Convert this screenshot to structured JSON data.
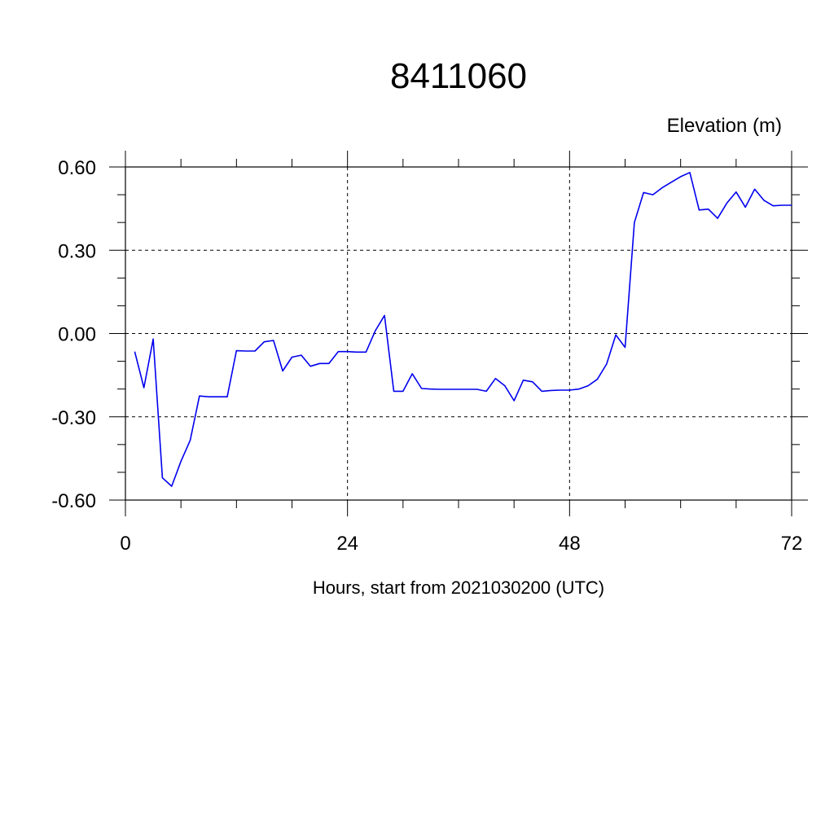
{
  "chart_data": {
    "type": "line",
    "title": "8411060",
    "ylabel": "Elevation (m)",
    "xlabel": "Hours, start from 2021030200 (UTC)",
    "xlim": [
      0,
      72
    ],
    "ylim": [
      -0.6,
      0.6
    ],
    "x_major_ticks": [
      0,
      24,
      48,
      72
    ],
    "x_tick_labels": [
      "0",
      "24",
      "48",
      "72"
    ],
    "x_minor_step": 6,
    "y_major_ticks": [
      -0.6,
      -0.3,
      0.0,
      0.3,
      0.6
    ],
    "y_tick_labels": [
      "-0.60",
      "-0.30",
      "0.00",
      "0.30",
      "0.60"
    ],
    "y_minor_step": 0.1,
    "grid": true,
    "series_color": "#0000ee",
    "series": [
      {
        "x": [
          1,
          2,
          3,
          4,
          5,
          6,
          7,
          8,
          9,
          10,
          11,
          12,
          13,
          14,
          15,
          16,
          17,
          18,
          19,
          20,
          21,
          22,
          23,
          24,
          25,
          26,
          27,
          28,
          29,
          30,
          31,
          32,
          33,
          34,
          35,
          36,
          37,
          38,
          39,
          40,
          41,
          42,
          43,
          44,
          45,
          46,
          47,
          48,
          49,
          50,
          51,
          52,
          53,
          54,
          55,
          56,
          57,
          58,
          59,
          60,
          61,
          62,
          63,
          64,
          65,
          66,
          67,
          68,
          69,
          70,
          71,
          72
        ],
        "y": [
          -0.065,
          -0.195,
          -0.02,
          -0.52,
          -0.55,
          -0.46,
          -0.385,
          -0.225,
          -0.228,
          -0.228,
          -0.228,
          -0.062,
          -0.063,
          -0.063,
          -0.03,
          -0.025,
          -0.135,
          -0.085,
          -0.078,
          -0.118,
          -0.108,
          -0.108,
          -0.065,
          -0.065,
          -0.067,
          -0.067,
          0.01,
          0.065,
          -0.208,
          -0.208,
          -0.145,
          -0.198,
          -0.2,
          -0.201,
          -0.201,
          -0.201,
          -0.201,
          -0.201,
          -0.208,
          -0.162,
          -0.188,
          -0.242,
          -0.168,
          -0.174,
          -0.208,
          -0.205,
          -0.204,
          -0.204,
          -0.2,
          -0.188,
          -0.165,
          -0.11,
          -0.005,
          -0.05,
          0.4,
          0.508,
          0.5,
          0.525,
          0.545,
          0.565,
          0.58,
          0.445,
          0.448,
          0.415,
          0.47,
          0.51,
          0.455,
          0.52,
          0.48,
          0.46,
          0.462,
          0.462
        ]
      }
    ]
  }
}
